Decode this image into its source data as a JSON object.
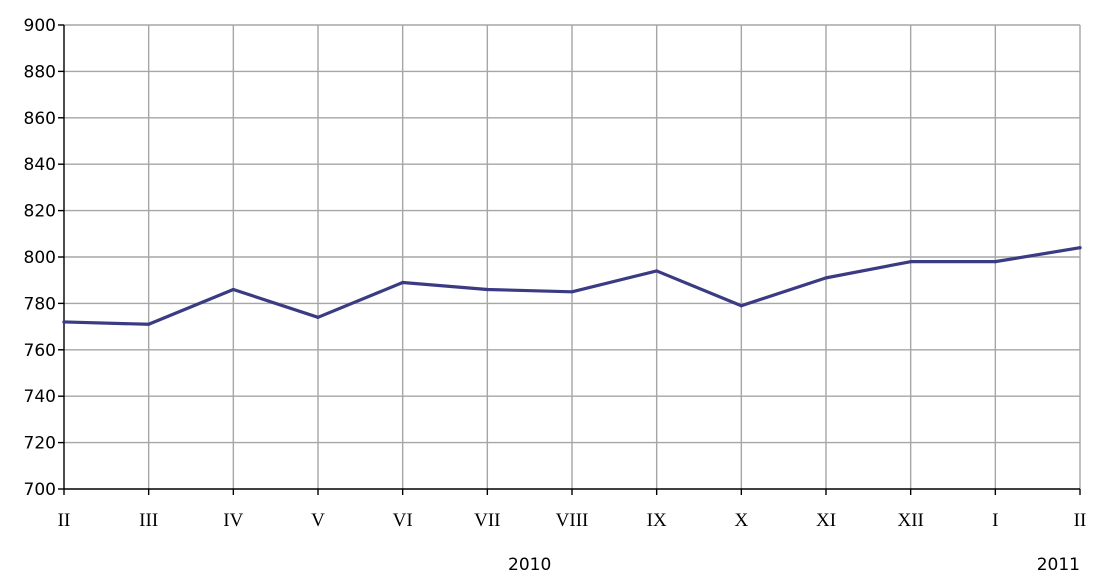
{
  "chart_data": {
    "type": "line",
    "categories": [
      "II",
      "III",
      "IV",
      "V",
      "VI",
      "VII",
      "VIII",
      "IX",
      "X",
      "XI",
      "XII",
      "I",
      "II"
    ],
    "series": [
      {
        "values": [
          772,
          771,
          786,
          774,
          789,
          786,
          785,
          794,
          779,
          791,
          798,
          798,
          804
        ]
      }
    ],
    "year_labels": [
      {
        "label": "2010",
        "category_index": 5.5
      },
      {
        "label": "2011",
        "category_index": 12
      }
    ],
    "ylim": [
      700,
      900
    ],
    "yticks": [
      700,
      720,
      740,
      760,
      780,
      800,
      820,
      840,
      860,
      880,
      900
    ],
    "grid": true,
    "legend": "none",
    "title": "",
    "xlabel": "",
    "ylabel": "",
    "colors": {
      "line": "#3b3b84",
      "grid": "#a6a6a6",
      "axis": "#000000"
    }
  }
}
